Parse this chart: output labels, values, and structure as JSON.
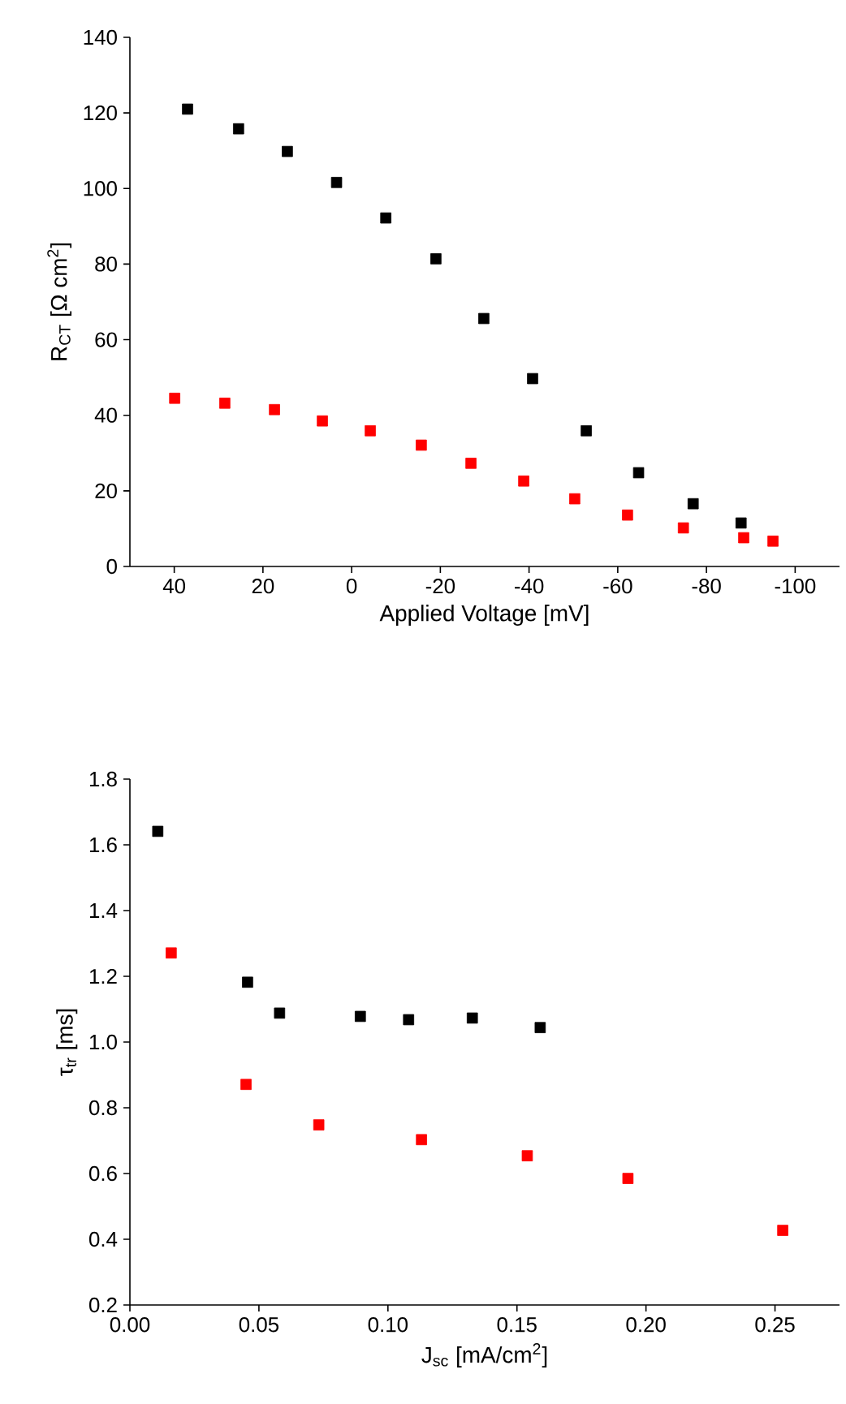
{
  "chart_data": [
    {
      "type": "scatter",
      "xlabel": "Applied Voltage [mV]",
      "ylabel": "R$_{CT}$ [Ω cm$^{2}$]",
      "xlim": [
        50,
        -110
      ],
      "ylim": [
        0,
        140
      ],
      "xticks": [
        40,
        20,
        0,
        -20,
        -40,
        -60,
        -80,
        -100
      ],
      "yticks": [
        0,
        20,
        40,
        60,
        80,
        100,
        120,
        140
      ],
      "marker": "square",
      "grid": false,
      "series": [
        {
          "color": "#000000",
          "x": [
            37.0,
            25.5,
            14.5,
            3.4,
            -7.7,
            -19.0,
            -29.8,
            -40.8,
            -52.9,
            -64.7,
            -77.0,
            -87.8
          ],
          "values": [
            121.0,
            115.8,
            109.8,
            101.6,
            92.2,
            81.4,
            65.6,
            49.7,
            35.9,
            24.8,
            16.6,
            11.5
          ]
        },
        {
          "color": "#ff0000",
          "x": [
            39.9,
            28.6,
            17.4,
            6.6,
            -4.2,
            -15.7,
            -26.9,
            -38.8,
            -50.3,
            -62.2,
            -74.8,
            -88.4,
            -95.0
          ],
          "values": [
            44.5,
            43.2,
            41.5,
            38.5,
            35.9,
            32.1,
            27.3,
            22.6,
            17.9,
            13.6,
            10.2,
            7.6,
            6.7
          ]
        }
      ]
    },
    {
      "type": "scatter",
      "xlabel": "J$_{sc}$ [mA/cm$^{2}$]",
      "ylabel": "τ$_{tr}$ [ms]",
      "xlim": [
        0,
        0.275
      ],
      "ylim": [
        0.2,
        1.8
      ],
      "xticks": [
        {
          "value": 0,
          "label": "0.00"
        },
        {
          "value": 0.05,
          "label": "0.05"
        },
        {
          "value": 0.1,
          "label": "0.10"
        },
        {
          "value": 0.15,
          "label": "0.15"
        },
        {
          "value": 0.2,
          "label": "0.20"
        },
        {
          "value": 0.25,
          "label": "0.25"
        }
      ],
      "yticks": [
        {
          "value": 0.2,
          "label": "0.2"
        },
        {
          "value": 0.4,
          "label": "0.4"
        },
        {
          "value": 0.6,
          "label": "0.6"
        },
        {
          "value": 0.8,
          "label": "0.8"
        },
        {
          "value": 1.0,
          "label": "1.0"
        },
        {
          "value": 1.2,
          "label": "1.2"
        },
        {
          "value": 1.4,
          "label": "1.4"
        },
        {
          "value": 1.6,
          "label": "1.6"
        },
        {
          "value": 1.8,
          "label": "1.8"
        }
      ],
      "marker": "square",
      "grid": false,
      "series": [
        {
          "color": "#000000",
          "x": [
            0.0108,
            0.0456,
            0.058,
            0.0893,
            0.108,
            0.1327,
            0.159
          ],
          "values": [
            1.641,
            1.182,
            1.088,
            1.078,
            1.068,
            1.073,
            1.044
          ]
        },
        {
          "color": "#ff0000",
          "x": [
            0.016,
            0.045,
            0.0732,
            0.113,
            0.154,
            0.193,
            0.253
          ],
          "values": [
            1.271,
            0.871,
            0.748,
            0.703,
            0.654,
            0.585,
            0.427
          ]
        }
      ]
    }
  ]
}
